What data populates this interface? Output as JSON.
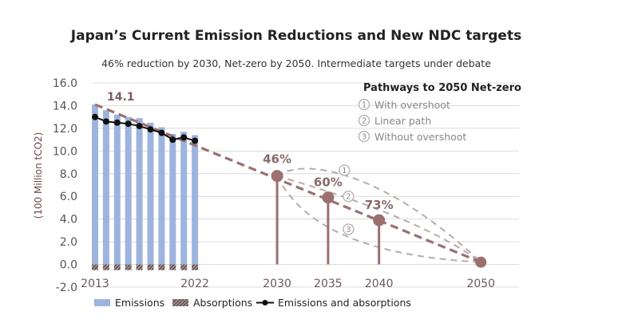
{
  "colors": {
    "emissions": "#9db4de",
    "absorptions": "#6e5656",
    "net_line": "#111111",
    "target": "#9b7070",
    "pathway": "#b8aaaa",
    "grid": "#dcdcdc"
  },
  "chart_data": {
    "type": "bar",
    "title": "Japan’s Current Emission Reductions and New NDC targets",
    "subtitle": "46% reduction by 2030, Net-zero by 2050. Intermediate targets under debate",
    "ylabel": "(100 Million tCO2)",
    "ylim": [
      -2.0,
      16.0
    ],
    "yticks": [
      "16.0",
      "14.0",
      "12.0",
      "10.0",
      "8.0",
      "6.0",
      "4.0",
      "2.0",
      "0.0",
      "-2.0"
    ],
    "ytick_values": [
      16,
      14,
      12,
      10,
      8,
      6,
      4,
      2,
      0,
      -2
    ],
    "x_labels": [
      {
        "label": "2013",
        "year": 2013
      },
      {
        "label": "2022",
        "year": 2022
      },
      {
        "label": "2030",
        "year": 2030
      },
      {
        "label": "2035",
        "year": 2035
      },
      {
        "label": "2040",
        "year": 2040
      },
      {
        "label": "2050",
        "year": 2050
      }
    ],
    "historical": {
      "years": [
        2013,
        2014,
        2015,
        2016,
        2017,
        2018,
        2019,
        2020,
        2021,
        2022
      ],
      "emissions": [
        14.1,
        13.6,
        13.2,
        13.0,
        12.9,
        12.5,
        12.1,
        11.5,
        11.7,
        11.4
      ],
      "absorptions": [
        -0.5,
        -0.5,
        -0.5,
        -0.5,
        -0.5,
        -0.5,
        -0.5,
        -0.5,
        -0.5,
        -0.5
      ],
      "net": [
        13.0,
        12.6,
        12.5,
        12.4,
        12.2,
        11.9,
        11.6,
        11.0,
        11.2,
        10.9
      ]
    },
    "start_label": "14.1",
    "targets": [
      {
        "year": 2030,
        "value": 7.8,
        "label": "46%"
      },
      {
        "year": 2035,
        "value": 5.9,
        "label": "60%"
      },
      {
        "year": 2040,
        "value": 3.9,
        "label": "73%"
      },
      {
        "year": 2050,
        "value": 0.2,
        "label": ""
      }
    ],
    "pathways_legend": {
      "title": "Pathways to 2050 Net-zero",
      "items": [
        {
          "num": "1",
          "label": "With overshoot"
        },
        {
          "num": "2",
          "label": "Linear path"
        },
        {
          "num": "3",
          "label": "Without overshoot"
        }
      ]
    },
    "pathway_markers": [
      {
        "num": "1",
        "year": 2036.6,
        "value": 8.3
      },
      {
        "num": "2",
        "year": 2037.0,
        "value": 6.0
      },
      {
        "num": "3",
        "year": 2037.0,
        "value": 3.1
      }
    ],
    "bottom_legend": [
      {
        "kind": "bar",
        "label": "Emissions"
      },
      {
        "kind": "hatch",
        "label": "Absorptions"
      },
      {
        "kind": "line",
        "label": "Emissions and absorptions"
      }
    ]
  }
}
